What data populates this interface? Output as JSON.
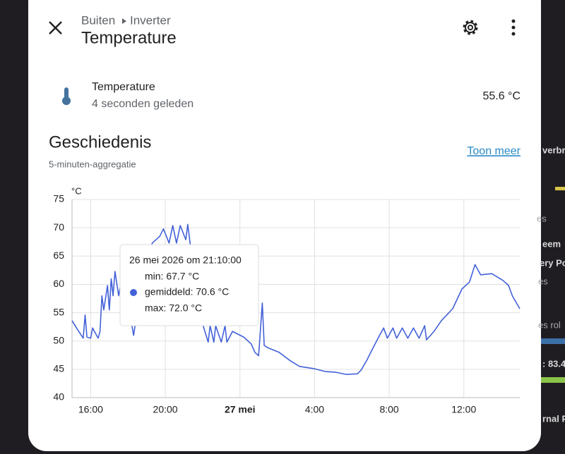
{
  "header": {
    "breadcrumb": [
      "Buiten",
      "Inverter"
    ],
    "title": "Temperature"
  },
  "entity": {
    "name": "Temperature",
    "last_changed": "4 seconden geleden",
    "state": "55.6 °C"
  },
  "history": {
    "title": "Geschiedenis",
    "more_link": "Toon meer",
    "subtitle": "5-minuten-aggregatie"
  },
  "tooltip": {
    "title": "26 mei 2026 om 21:10:00",
    "lines": [
      "min: 67.7 °C",
      "gemiddeld: 70.6 °C",
      "max: 72.0 °C"
    ]
  },
  "background": {
    "fragments": [
      "verbr",
      "es",
      "eem",
      "ery Po",
      "es",
      "es rol",
      ": 83.4",
      "rnal P"
    ]
  },
  "chart_data": {
    "type": "line",
    "ylabel": "°C",
    "xlim": [
      15,
      39
    ],
    "xticks": [
      {
        "value": 16,
        "label": "16:00"
      },
      {
        "value": 20,
        "label": "20:00"
      },
      {
        "value": 24,
        "label": "27 mei"
      },
      {
        "value": 28,
        "label": "4:00"
      },
      {
        "value": 32,
        "label": "8:00"
      },
      {
        "value": 36,
        "label": "12:00"
      }
    ],
    "ylim": [
      40,
      75
    ],
    "yticks": [
      40,
      45,
      50,
      55,
      60,
      65,
      70,
      75
    ],
    "grid": true,
    "x": [
      15.0,
      15.3,
      15.6,
      15.7,
      15.8,
      16.0,
      16.1,
      16.4,
      16.5,
      16.6,
      16.7,
      16.9,
      17.0,
      17.1,
      17.2,
      17.3,
      17.5,
      17.7,
      18.0,
      18.3,
      18.5,
      18.9,
      19.3,
      19.7,
      19.9,
      20.2,
      20.4,
      20.6,
      20.8,
      21.1,
      21.2,
      21.4,
      21.7,
      22.0,
      22.3,
      22.4,
      22.6,
      22.7,
      23.0,
      23.2,
      23.3,
      23.6,
      24.2,
      24.6,
      24.8,
      25.0,
      25.2,
      25.3,
      25.5,
      26.1,
      26.7,
      27.2,
      28.0,
      28.6,
      29.1,
      29.7,
      30.3,
      30.5,
      30.8,
      31.2,
      31.5,
      31.7,
      31.9,
      32.2,
      32.4,
      32.7,
      33.0,
      33.3,
      33.6,
      33.9,
      34.0,
      34.4,
      34.8,
      35.4,
      35.9,
      36.3,
      36.6,
      36.9,
      37.5,
      38.1,
      38.4,
      38.6,
      39.0
    ],
    "series": [
      {
        "name": "Temperature",
        "color": "#4361d8",
        "values": [
          53.6,
          52,
          50.5,
          54.6,
          50.7,
          50.5,
          52.3,
          50.5,
          51.7,
          58,
          55.5,
          59.8,
          55.5,
          61,
          58,
          62.3,
          58,
          61.7,
          56.7,
          51,
          55.5,
          63,
          67.3,
          68.5,
          69.8,
          67.3,
          70.4,
          67.3,
          70.4,
          67.9,
          70.6,
          65.4,
          58,
          53,
          49.8,
          52.7,
          49.8,
          52.7,
          49.8,
          52.7,
          49.8,
          51.7,
          50.7,
          49.5,
          48,
          47.4,
          56.7,
          49.2,
          48.8,
          48,
          46.5,
          45.5,
          45.1,
          44.6,
          44.5,
          44.1,
          44.2,
          44.9,
          46.6,
          49.2,
          51.1,
          52.3,
          50.5,
          52.3,
          50.5,
          52.3,
          50.5,
          52.3,
          50.5,
          52.7,
          50.2,
          51.7,
          53.6,
          55.7,
          59.2,
          60.4,
          63.5,
          61.7,
          61.9,
          60.7,
          59.8,
          58,
          55.7
        ]
      }
    ]
  }
}
